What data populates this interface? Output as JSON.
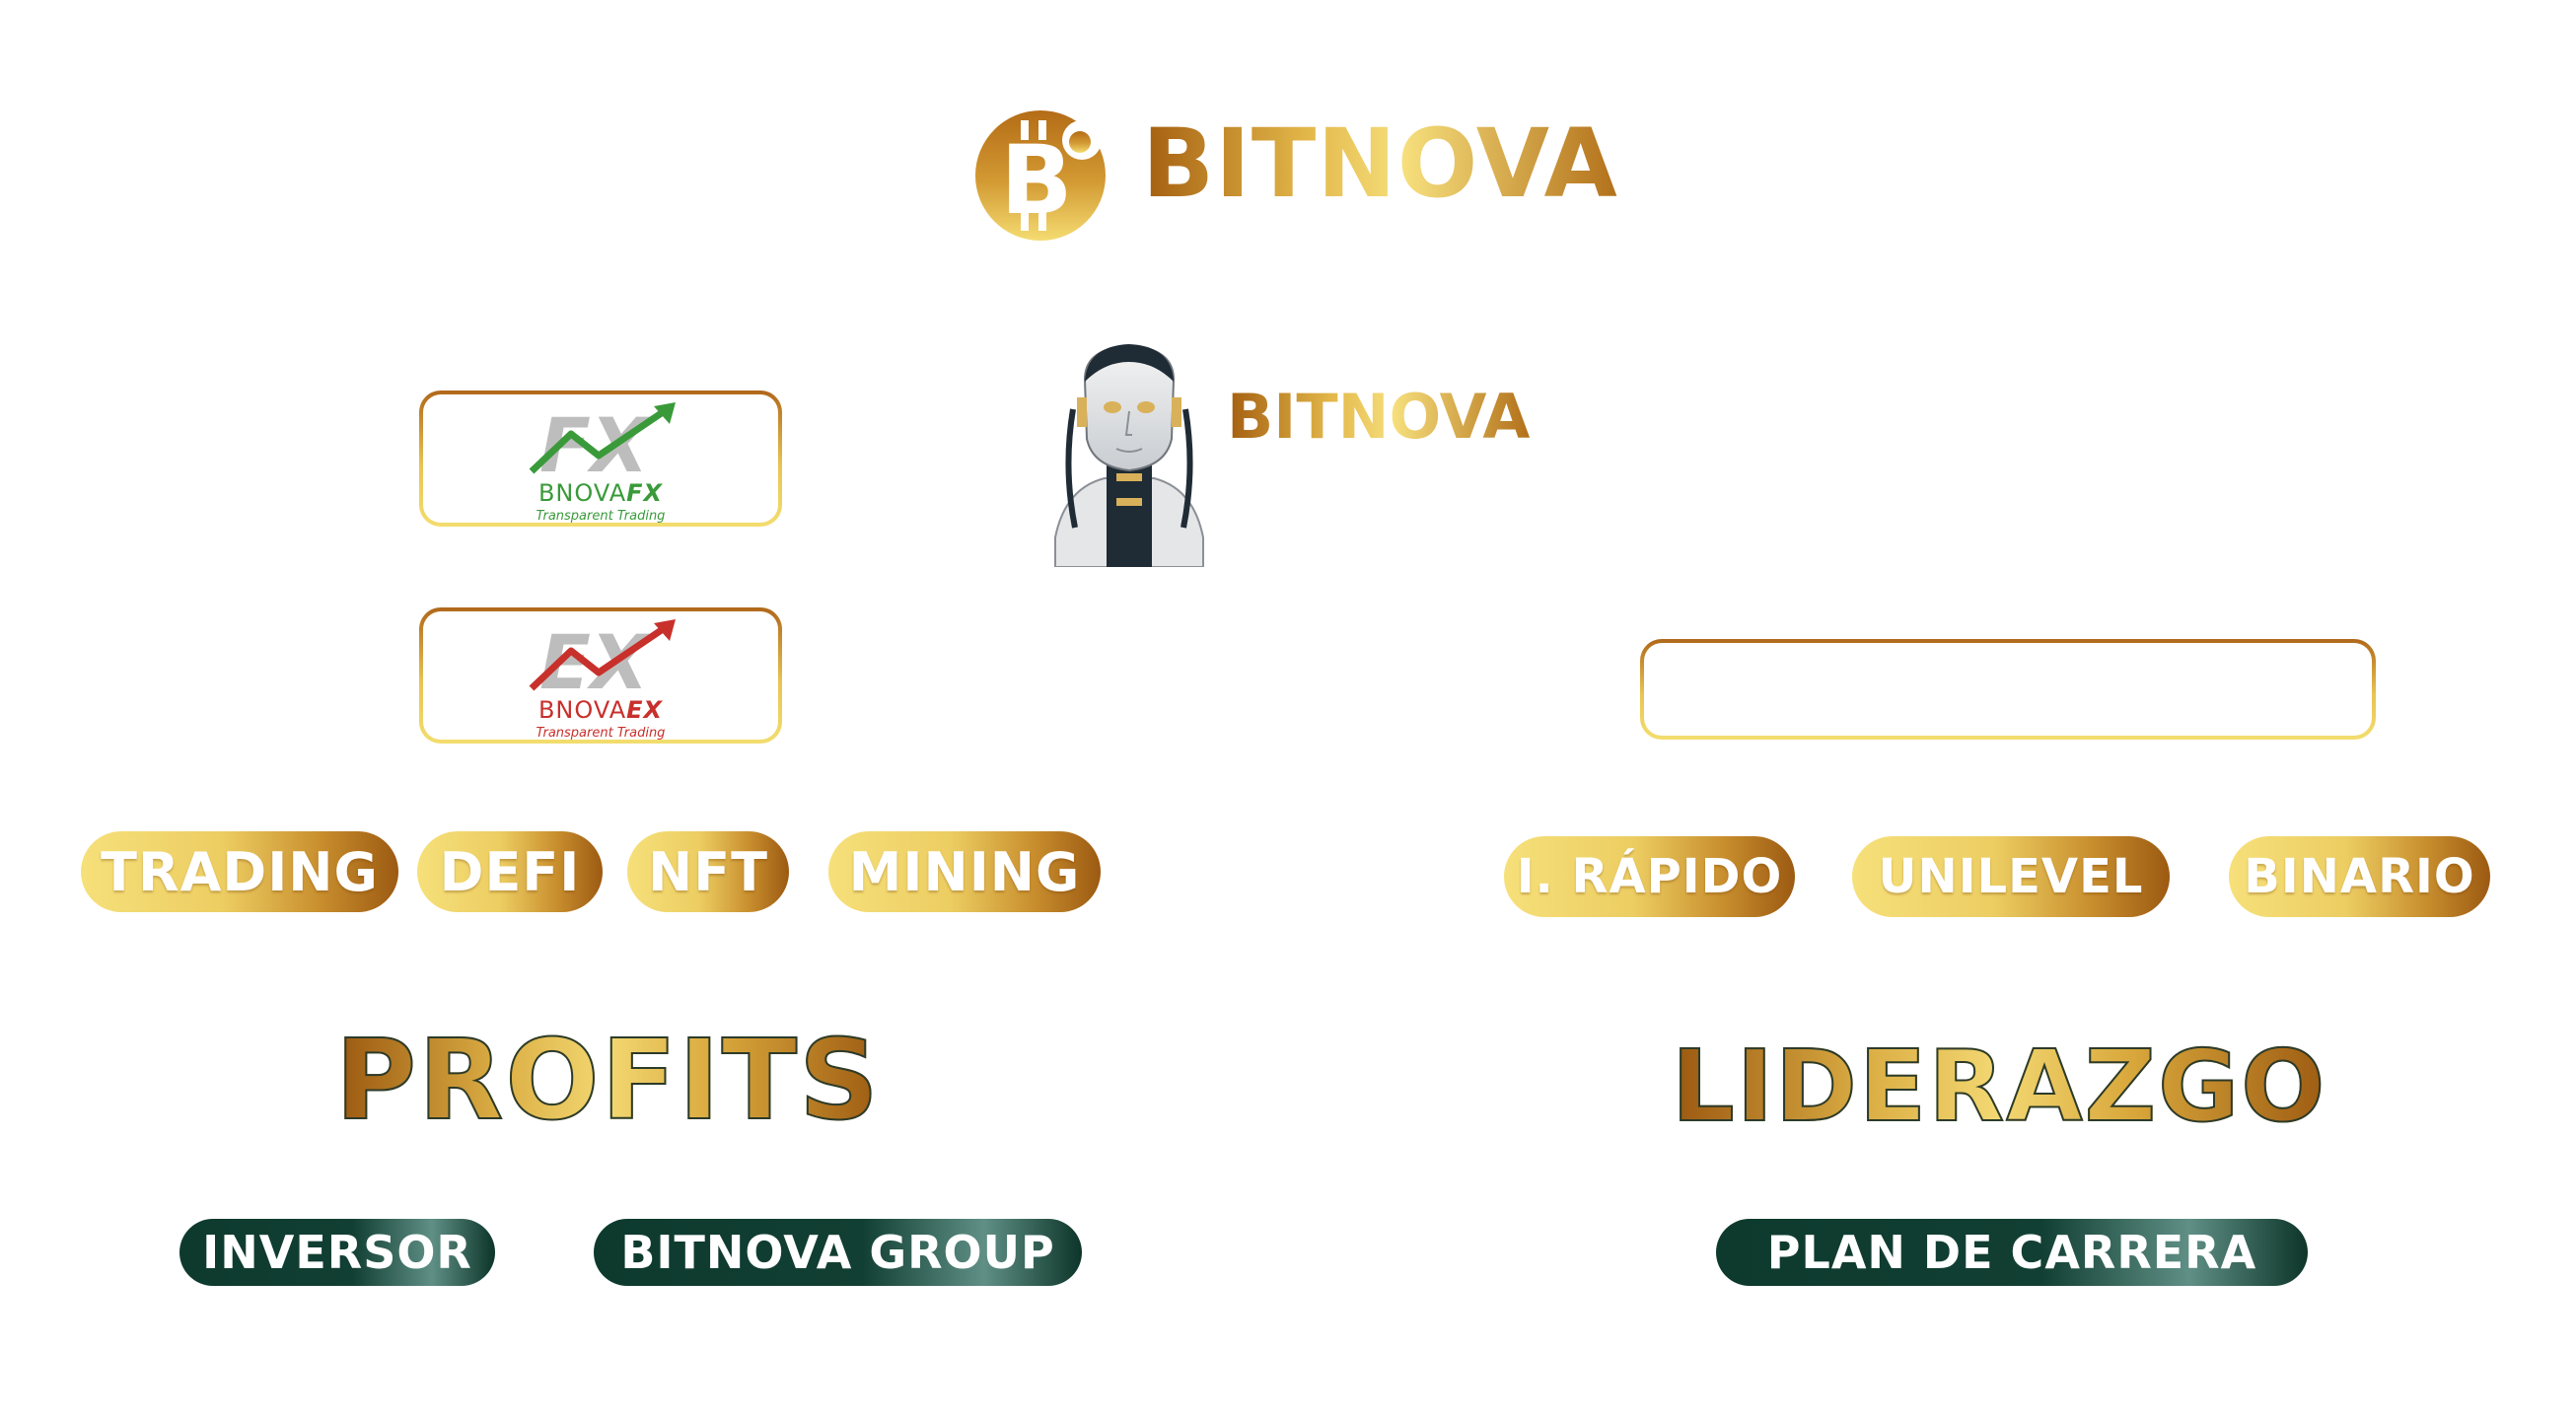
{
  "header": {
    "brand": "BITNOVA",
    "logo_icon": "bitcoin-coin-icon",
    "colors": {
      "gold_light": "#f6e07a",
      "gold_dark": "#a45e10"
    }
  },
  "robot": {
    "icon": "robot-avatar-icon",
    "label": "BITNOVA"
  },
  "cards": {
    "fx": {
      "logo_icon": "fx-chart-arrow-icon",
      "name_prefix": "BNOVA",
      "name_suffix": "FX",
      "tagline": "Transparent Trading",
      "accent": "#3a9a3a"
    },
    "ex": {
      "logo_icon": "ex-chart-arrow-icon",
      "name_prefix": "BNOVA",
      "name_suffix": "EX",
      "tagline": "Transparent Trading",
      "accent": "#c8302c"
    }
  },
  "left_pills": [
    "TRADING",
    "DEFI",
    "NFT",
    "MINING"
  ],
  "right_pills": [
    "I. RÁPIDO",
    "UNILEVEL",
    "BINARIO"
  ],
  "headings": {
    "profits": "PROFITS",
    "liderazgo": "LIDERAZGO"
  },
  "bottom_pills": {
    "inversor": "INVERSOR",
    "group": "BITNOVA GROUP",
    "carrera": "PLAN DE CARRERA"
  },
  "accent_dark": "#0e3a2e"
}
